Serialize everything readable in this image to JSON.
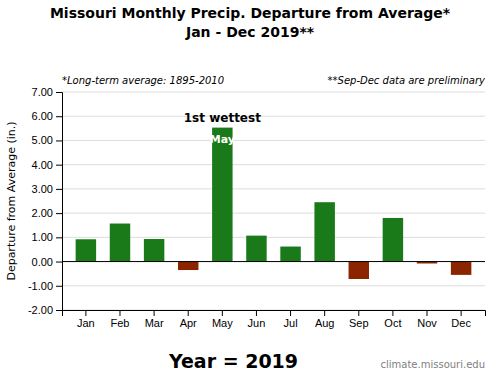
{
  "chart_data": {
    "type": "bar",
    "title": "Missouri Monthly Precip. Departure from Average*",
    "subtitle": "Jan - Dec 2019**",
    "xlabel": "Year = 2019",
    "ylabel": "Departure from Average (in.)",
    "notes": [
      "*Long-term average: 1895-2010",
      "**Sep-Dec data are preliminary"
    ],
    "source": "climate.missouri.edu",
    "categories": [
      "Jan",
      "Feb",
      "Mar",
      "Apr",
      "May",
      "Jun",
      "Jul",
      "Aug",
      "Sep",
      "Oct",
      "Nov",
      "Dec"
    ],
    "values": [
      0.92,
      1.57,
      0.93,
      -0.35,
      5.53,
      1.07,
      0.62,
      2.45,
      -0.72,
      1.8,
      -0.08,
      -0.55
    ],
    "colors": [
      "#1a7a1a",
      "#1a7a1a",
      "#1a7a1a",
      "#8b2500",
      "#1a7a1a",
      "#1a7a1a",
      "#1a7a1a",
      "#1a7a1a",
      "#8b2500",
      "#1a7a1a",
      "#8b2500",
      "#8b2500"
    ],
    "annotations": [
      {
        "text": "1st wettest",
        "x": "May"
      },
      {
        "text": "May",
        "x": "May"
      }
    ],
    "ylim": [
      -2.0,
      7.0
    ],
    "yticks": [
      {
        "value": -2,
        "label": "-2.00"
      },
      {
        "value": -1,
        "label": "-1.00"
      },
      {
        "value": 0,
        "label": "0.00"
      },
      {
        "value": 1,
        "label": "1.00"
      },
      {
        "value": 2,
        "label": "2.00"
      },
      {
        "value": 3,
        "label": "3.00"
      },
      {
        "value": 4,
        "label": "4.00"
      },
      {
        "value": 5,
        "label": "5.00"
      },
      {
        "value": 6,
        "label": "6.00"
      },
      {
        "value": 7,
        "label": "7.00"
      }
    ],
    "grid": true
  }
}
